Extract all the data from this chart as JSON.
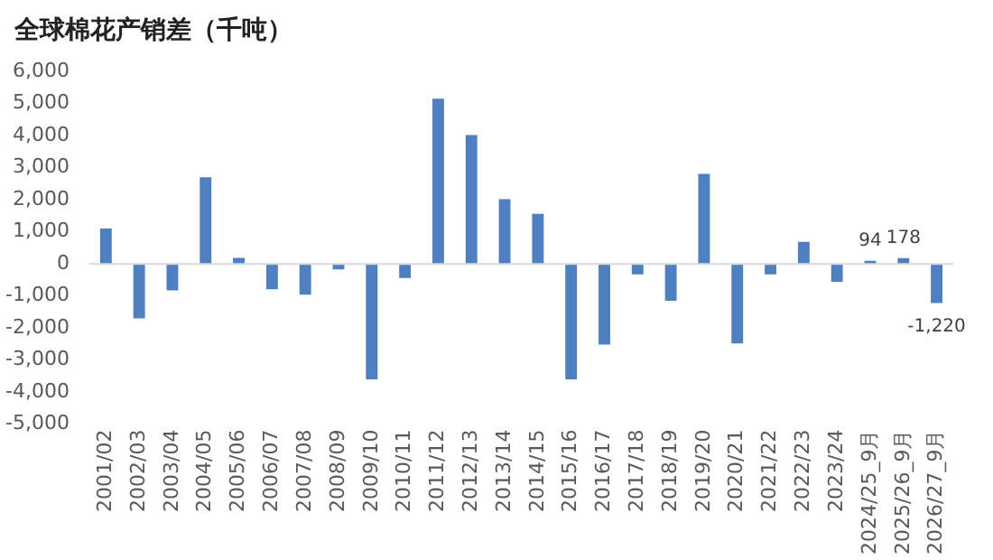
{
  "chart_data": {
    "type": "bar",
    "title": "全球棉花产销差（千吨）",
    "categories": [
      "2001/02",
      "2002/03",
      "2003/04",
      "2004/05",
      "2005/06",
      "2006/07",
      "2007/08",
      "2008/09",
      "2009/10",
      "2010/11",
      "2011/12",
      "2012/13",
      "2013/14",
      "2014/15",
      "2015/16",
      "2016/17",
      "2017/18",
      "2018/19",
      "2019/20",
      "2020/21",
      "2021/22",
      "2022/23",
      "2023/24",
      "2024/25_9月",
      "2025/26_9月",
      "2026/27_9月"
    ],
    "values": [
      1100,
      -1700,
      -830,
      2700,
      190,
      -790,
      -960,
      -170,
      -3600,
      -440,
      5150,
      4020,
      2020,
      1560,
      -3600,
      -2520,
      -330,
      -1150,
      2810,
      -2480,
      -330,
      690,
      -560,
      94,
      178,
      -1220
    ],
    "value_labels": [
      null,
      null,
      null,
      null,
      null,
      null,
      null,
      null,
      null,
      null,
      null,
      null,
      null,
      null,
      null,
      null,
      null,
      null,
      null,
      null,
      null,
      null,
      null,
      "94",
      "178",
      "-1,220"
    ],
    "color": "#4e7fc0",
    "ylim": [
      -5000,
      6000
    ],
    "yticks": [
      {
        "value": -5000,
        "label": "-5,000"
      },
      {
        "value": -4000,
        "label": "-4,000"
      },
      {
        "value": -3000,
        "label": "-3,000"
      },
      {
        "value": -2000,
        "label": "-2,000"
      },
      {
        "value": -1000,
        "label": "-1,000"
      },
      0,
      {
        "value": 1000,
        "label": "1,000"
      },
      {
        "value": 2000,
        "label": "2,000"
      },
      {
        "value": 3000,
        "label": "3,000"
      },
      {
        "value": 4000,
        "label": "4,000"
      },
      {
        "value": 5000,
        "label": "5,000"
      },
      {
        "value": 6000,
        "label": "6,000"
      }
    ],
    "legend": false
  }
}
